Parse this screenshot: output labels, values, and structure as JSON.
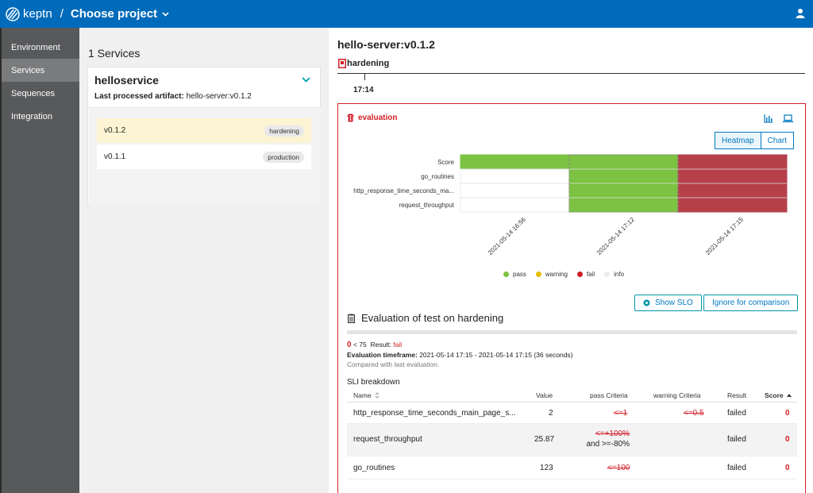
{
  "topbar": {
    "logo_text": "keptn",
    "separator": "/",
    "project_label": "Choose project"
  },
  "sidenav": {
    "items": [
      {
        "label": "Environment"
      },
      {
        "label": "Services"
      },
      {
        "label": "Sequences"
      },
      {
        "label": "Integration"
      }
    ]
  },
  "services": {
    "count_label": "1 Services",
    "service_name": "helloservice",
    "artifact_label": "Last processed artifact:",
    "artifact_value": "hello-server:v0.1.2",
    "versions": [
      {
        "version": "v0.1.2",
        "stage": "hardening"
      },
      {
        "version": "v0.1.1",
        "stage": "production"
      }
    ]
  },
  "detail": {
    "title": "hello-server:v0.1.2",
    "stage": "hardening",
    "time": "17:14",
    "evaluation_label": "evaluation",
    "toggle": {
      "heatmap": "Heatmap",
      "chart": "Chart"
    },
    "show_slo": "Show SLO",
    "ignore": "Ignore for comparison",
    "eval_title": "Evaluation of test on hardening",
    "score_value": "0",
    "score_threshold": "< 75",
    "result_label": "Result:",
    "result_value": "fail",
    "timeframe_label": "Evaluation timeframe:",
    "timeframe_value": "2021-05-14 17:15 - 2021-05-14 17:15 (36 seconds)",
    "compared": "Compared with last evaluation.",
    "sli_title": "SLI breakdown"
  },
  "chart_data": {
    "type": "heatmap",
    "rows": [
      "Score",
      "go_routines",
      "http_response_time_seconds_ma...",
      "request_throughput"
    ],
    "columns": [
      "2021-05-14 16:56",
      "2021-05-14 17:12",
      "2021-05-14 17:15"
    ],
    "cells": [
      [
        "pass",
        "pass",
        "fail"
      ],
      [
        "info",
        "pass",
        "fail"
      ],
      [
        "info",
        "pass",
        "fail"
      ],
      [
        "info",
        "pass",
        "fail"
      ]
    ],
    "legend": [
      "pass",
      "warning",
      "fail",
      "info"
    ],
    "colors": {
      "pass": "#7dc242",
      "warning": "#e6be00",
      "fail": "#b5404a",
      "info": "#ffffff"
    },
    "legend_colors": {
      "pass": "#7dc242",
      "warning": "#e6be00",
      "fail": "#d11f28",
      "info": "#eeeeee"
    }
  },
  "sli_table": {
    "headers": {
      "name": "Name",
      "value": "Value",
      "pass": "pass Criteria",
      "warning": "warning Criteria",
      "result": "Result",
      "score": "Score"
    },
    "rows": [
      {
        "name": "http_response_time_seconds_main_page_s...",
        "value": "2",
        "pass": "<=1",
        "pass2": "",
        "warning": "<=0.5",
        "result": "failed",
        "score": "0"
      },
      {
        "name": "request_throughput",
        "value": "25.87",
        "pass": "<=+100%",
        "pass2": " and >=-80%",
        "warning": "",
        "result": "failed",
        "score": "0"
      },
      {
        "name": "go_routines",
        "value": "123",
        "pass": "<=100",
        "pass2": "",
        "warning": "",
        "result": "failed",
        "score": "0"
      }
    ]
  }
}
